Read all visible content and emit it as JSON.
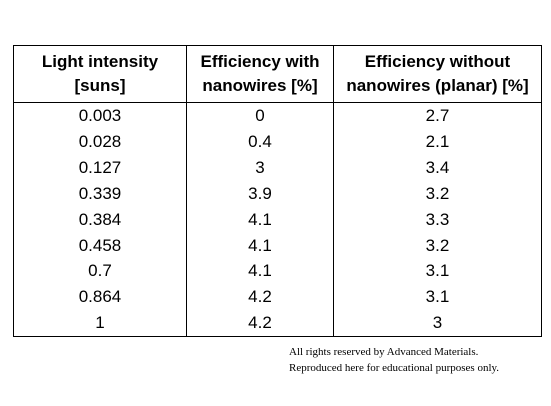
{
  "table": {
    "headers": [
      "Light intensity [suns]",
      "Efficiency with nanowires [%]",
      "Efficiency without nanowires (planar) [%]"
    ],
    "header_lines": [
      [
        "Light intensity",
        "[suns]"
      ],
      [
        "Efficiency with",
        "nanowires [%]"
      ],
      [
        "Efficiency without",
        "nanowires (planar) [%]"
      ]
    ],
    "rows": [
      [
        "0.003",
        "0",
        "2.7"
      ],
      [
        "0.028",
        "0.4",
        "2.1"
      ],
      [
        "0.127",
        "3",
        "3.4"
      ],
      [
        "0.339",
        "3.9",
        "3.2"
      ],
      [
        "0.384",
        "4.1",
        "3.3"
      ],
      [
        "0.458",
        "4.1",
        "3.2"
      ],
      [
        "0.7",
        "4.1",
        "3.1"
      ],
      [
        "0.864",
        "4.2",
        "3.1"
      ],
      [
        "1",
        "4.2",
        "3"
      ]
    ]
  },
  "copyright": {
    "line1": "All rights reserved by Advanced Materials.",
    "line2": "Reproduced here for educational purposes only."
  }
}
